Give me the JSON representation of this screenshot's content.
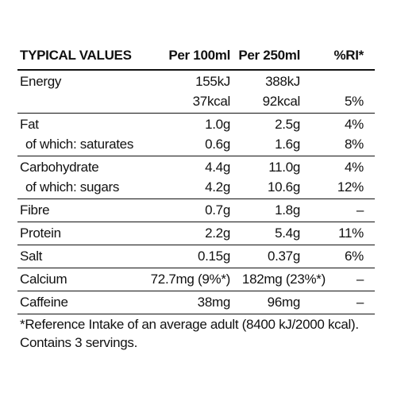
{
  "header": {
    "label": "TYPICAL VALUES",
    "per100": "Per 100ml",
    "per250": "Per 250ml",
    "ri": "%RI*"
  },
  "rows": [
    {
      "lines": [
        {
          "label": "Energy",
          "per100": "155kJ",
          "per250": "388kJ"
        },
        {
          "per100": "37kcal",
          "per250": "92kcal",
          "ri": "5%"
        }
      ]
    },
    {
      "lines": [
        {
          "label": "Fat",
          "per100": "1.0g",
          "per250": "2.5g",
          "ri": "4%"
        },
        {
          "label": "of which: saturates",
          "per100": "0.6g",
          "per250": "1.6g",
          "ri": "8%"
        }
      ]
    },
    {
      "lines": [
        {
          "label": "Carbohydrate",
          "per100": "4.4g",
          "per250": "11.0g",
          "ri": "4%"
        },
        {
          "label": "of which: sugars",
          "per100": "4.2g",
          "per250": "10.6g",
          "ri": "12%"
        }
      ]
    },
    {
      "lines": [
        {
          "label": "Fibre",
          "per100": "0.7g",
          "per250": "1.8g",
          "ri": "–"
        }
      ]
    },
    {
      "lines": [
        {
          "label": "Protein",
          "per100": "2.2g",
          "per250": "5.4g",
          "ri": "11%"
        }
      ]
    },
    {
      "lines": [
        {
          "label": "Salt",
          "per100": "0.15g",
          "per250": "0.37g",
          "ri": "6%"
        }
      ]
    },
    {
      "lines": [
        {
          "label": "Calcium",
          "per100": "72.7mg (9%*)",
          "per250": "182mg (23%*)",
          "ri": "–"
        }
      ]
    },
    {
      "lines": [
        {
          "label": "Caffeine",
          "per100": "38mg",
          "per250": "96mg",
          "ri": "–"
        }
      ]
    }
  ],
  "footnote": [
    "*Reference Intake of an average adult (8400 kJ/2000 kcal).",
    "Contains 3 servings."
  ]
}
